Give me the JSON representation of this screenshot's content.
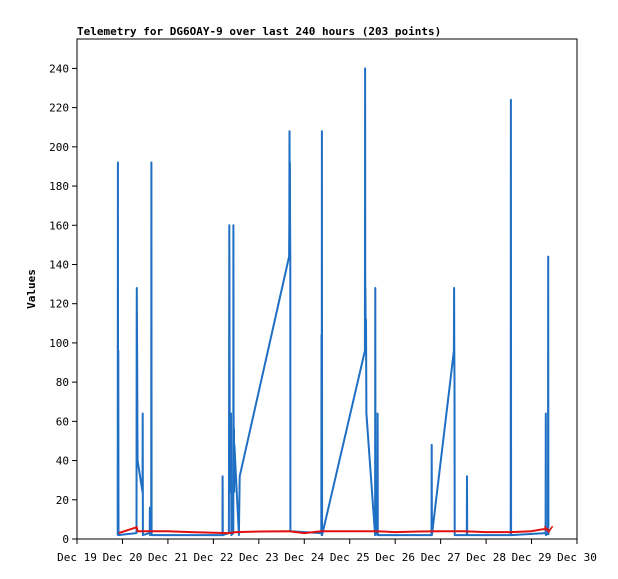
{
  "chart_data": {
    "type": "line",
    "title": "Telemetry for DG6OAY-9 over last 240 hours (203 points)",
    "xlabel": "",
    "ylabel": "Values",
    "x_range": [
      "2020-12-19T00:00",
      "2020-12-30T00:00"
    ],
    "ylim": [
      0,
      255
    ],
    "y_ticks": [
      0,
      20,
      40,
      60,
      80,
      100,
      120,
      140,
      160,
      180,
      200,
      220,
      240
    ],
    "x_ticks": [
      {
        "t": "2020-12-19T00:00",
        "label": "Dec 19"
      },
      {
        "t": "2020-12-20T00:00",
        "label": "Dec 20"
      },
      {
        "t": "2020-12-21T00:00",
        "label": "Dec 21"
      },
      {
        "t": "2020-12-22T00:00",
        "label": "Dec 22"
      },
      {
        "t": "2020-12-23T00:00",
        "label": "Dec 23"
      },
      {
        "t": "2020-12-24T00:00",
        "label": "Dec 24"
      },
      {
        "t": "2020-12-25T00:00",
        "label": "Dec 25"
      },
      {
        "t": "2020-12-26T00:00",
        "label": "Dec 26"
      },
      {
        "t": "2020-12-27T00:00",
        "label": "Dec 27"
      },
      {
        "t": "2020-12-28T00:00",
        "label": "Dec 28"
      },
      {
        "t": "2020-12-29T00:00",
        "label": "Dec 29"
      },
      {
        "t": "2020-12-30T00:00",
        "label": "Dec 30"
      }
    ],
    "grid": false,
    "legend": "none",
    "series": [
      {
        "color": "#1f6fc4",
        "points": [
          [
            "2020-12-19T21:30",
            2
          ],
          [
            "2020-12-19T21:36",
            192
          ],
          [
            "2020-12-19T21:42",
            2
          ],
          [
            "2020-12-19T21:48",
            96
          ],
          [
            "2020-12-19T21:54",
            2
          ],
          [
            "2020-12-20T07:24",
            3
          ],
          [
            "2020-12-20T07:30",
            112
          ],
          [
            "2020-12-20T07:36",
            128
          ],
          [
            "2020-12-20T07:42",
            104
          ],
          [
            "2020-12-20T07:48",
            88
          ],
          [
            "2020-12-20T07:54",
            56
          ],
          [
            "2020-12-20T08:00",
            40
          ],
          [
            "2020-12-20T10:36",
            24
          ],
          [
            "2020-12-20T10:42",
            64
          ],
          [
            "2020-12-20T10:48",
            2
          ],
          [
            "2020-12-20T14:24",
            3
          ],
          [
            "2020-12-20T14:30",
            16
          ],
          [
            "2020-12-20T14:36",
            2
          ],
          [
            "2020-12-20T15:12",
            3
          ],
          [
            "2020-12-20T15:18",
            192
          ],
          [
            "2020-12-20T15:24",
            2
          ],
          [
            "2020-12-22T04:48",
            2
          ],
          [
            "2020-12-22T04:54",
            32
          ],
          [
            "2020-12-22T05:00",
            2
          ],
          [
            "2020-12-22T08:12",
            3
          ],
          [
            "2020-12-22T08:18",
            80
          ],
          [
            "2020-12-22T08:24",
            160
          ],
          [
            "2020-12-22T08:30",
            120
          ],
          [
            "2020-12-22T08:36",
            64
          ],
          [
            "2020-12-22T08:42",
            40
          ],
          [
            "2020-12-22T08:48",
            24
          ],
          [
            "2020-12-22T09:18",
            64
          ],
          [
            "2020-12-22T09:24",
            40
          ],
          [
            "2020-12-22T09:30",
            2
          ],
          [
            "2020-12-22T10:30",
            3
          ],
          [
            "2020-12-22T10:36",
            160
          ],
          [
            "2020-12-22T10:42",
            64
          ],
          [
            "2020-12-22T10:48",
            48
          ],
          [
            "2020-12-22T10:54",
            56
          ],
          [
            "2020-12-22T11:00",
            24
          ],
          [
            "2020-12-22T11:06",
            48
          ],
          [
            "2020-12-22T13:30",
            2
          ],
          [
            "2020-12-22T13:54",
            32
          ],
          [
            "2020-12-23T16:00",
            144
          ],
          [
            "2020-12-23T16:06",
            160
          ],
          [
            "2020-12-23T16:12",
            208
          ],
          [
            "2020-12-23T16:18",
            176
          ],
          [
            "2020-12-23T16:24",
            192
          ],
          [
            "2020-12-23T16:30",
            160
          ],
          [
            "2020-12-23T16:36",
            144
          ],
          [
            "2020-12-23T16:42",
            4
          ],
          [
            "2020-12-24T09:00",
            3
          ],
          [
            "2020-12-24T09:06",
            104
          ],
          [
            "2020-12-24T09:12",
            2
          ],
          [
            "2020-12-24T09:18",
            208
          ],
          [
            "2020-12-24T09:24",
            2
          ],
          [
            "2020-12-25T08:00",
            96
          ],
          [
            "2020-12-25T08:06",
            240
          ],
          [
            "2020-12-25T08:12",
            96
          ],
          [
            "2020-12-25T08:18",
            128
          ],
          [
            "2020-12-25T08:24",
            112
          ],
          [
            "2020-12-25T08:30",
            104
          ],
          [
            "2020-12-25T08:36",
            112
          ],
          [
            "2020-12-25T08:42",
            88
          ],
          [
            "2020-12-25T08:48",
            64
          ],
          [
            "2020-12-25T13:24",
            2
          ],
          [
            "2020-12-25T13:30",
            128
          ],
          [
            "2020-12-25T13:36",
            2
          ],
          [
            "2020-12-25T14:36",
            3
          ],
          [
            "2020-12-25T14:42",
            64
          ],
          [
            "2020-12-25T14:48",
            2
          ],
          [
            "2020-12-26T19:12",
            2
          ],
          [
            "2020-12-26T19:18",
            48
          ],
          [
            "2020-12-26T19:24",
            2
          ],
          [
            "2020-12-27T07:00",
            96
          ],
          [
            "2020-12-27T07:06",
            128
          ],
          [
            "2020-12-27T07:12",
            96
          ],
          [
            "2020-12-27T07:18",
            80
          ],
          [
            "2020-12-27T07:24",
            2
          ],
          [
            "2020-12-27T13:48",
            2
          ],
          [
            "2020-12-27T13:54",
            32
          ],
          [
            "2020-12-27T14:00",
            2
          ],
          [
            "2020-12-28T13:00",
            2
          ],
          [
            "2020-12-28T13:06",
            224
          ],
          [
            "2020-12-28T13:12",
            2
          ],
          [
            "2020-12-29T07:24",
            3
          ],
          [
            "2020-12-29T07:30",
            64
          ],
          [
            "2020-12-29T07:36",
            2
          ],
          [
            "2020-12-29T08:42",
            3
          ],
          [
            "2020-12-29T08:48",
            144
          ],
          [
            "2020-12-29T08:54",
            2
          ]
        ]
      },
      {
        "color": "#e01010",
        "points": [
          [
            "2020-12-19T22:00",
            3
          ],
          [
            "2020-12-20T07:30",
            6
          ],
          [
            "2020-12-20T08:00",
            4
          ],
          [
            "2020-12-21T00:00",
            4
          ],
          [
            "2020-12-21T12:00",
            3.5
          ],
          [
            "2020-12-22T08:00",
            3
          ],
          [
            "2020-12-22T12:00",
            3.5
          ],
          [
            "2020-12-23T00:00",
            3.8
          ],
          [
            "2020-12-23T16:00",
            4
          ],
          [
            "2020-12-24T00:00",
            3
          ],
          [
            "2020-12-24T09:00",
            4
          ],
          [
            "2020-12-25T00:00",
            4
          ],
          [
            "2020-12-25T14:00",
            4
          ],
          [
            "2020-12-26T00:00",
            3.5
          ],
          [
            "2020-12-26T12:00",
            3.8
          ],
          [
            "2020-12-27T00:00",
            4
          ],
          [
            "2020-12-27T12:00",
            4
          ],
          [
            "2020-12-28T00:00",
            3.5
          ],
          [
            "2020-12-28T13:00",
            3.5
          ],
          [
            "2020-12-29T00:00",
            4
          ],
          [
            "2020-12-29T06:00",
            5
          ],
          [
            "2020-12-29T09:00",
            5
          ]
        ]
      }
    ]
  }
}
